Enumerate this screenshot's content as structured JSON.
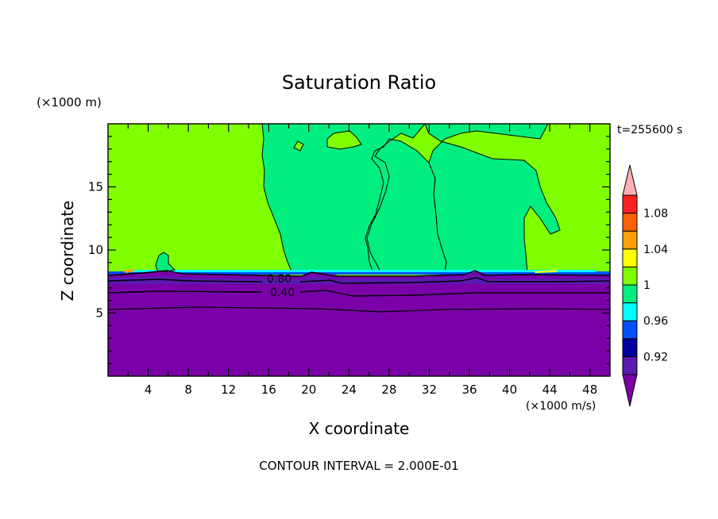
{
  "chart_data": {
    "type": "heatmap",
    "title": "Saturation Ratio",
    "xlabel": "X coordinate",
    "ylabel": "Z coordinate",
    "x_unit_label": "(×1000 m/s)",
    "y_unit_label": "(×1000 m)",
    "time_label": "t=255600 s",
    "footer": "CONTOUR INTERVAL = 2.000E-01",
    "xlim": [
      0,
      50
    ],
    "ylim": [
      0,
      20
    ],
    "x_ticks": [
      4,
      8,
      12,
      16,
      20,
      24,
      28,
      32,
      36,
      40,
      44,
      48
    ],
    "y_ticks": [
      5,
      10,
      15
    ],
    "colorbar": {
      "tick_labels": [
        "0.92",
        "0.96",
        "1",
        "1.04",
        "1.08"
      ],
      "levels": [
        0.9,
        0.92,
        0.94,
        0.96,
        0.98,
        1.0,
        1.02,
        1.04,
        1.06,
        1.08,
        1.1
      ],
      "colors": [
        "#5a1ab0",
        "#0000a0",
        "#0050ff",
        "#00ffff",
        "#00ee80",
        "#80ff00",
        "#ffff00",
        "#ffa000",
        "#ff6000",
        "#ff2020"
      ],
      "under_color": "#7a00a8",
      "over_color": "#ffb0b0"
    },
    "contour_labels": [
      {
        "text": "0.80",
        "x": 17.5,
        "z": 7.6
      },
      {
        "text": "0.40",
        "x": 17.5,
        "z": 6.4
      }
    ],
    "regions": {
      "upper_green_value": 1.01,
      "lower_region_value": "< 0.90",
      "boundary_height": 8.0,
      "saturated_region_x": [
        [
          15.3,
          26.5
        ],
        [
          32.5,
          43.5
        ]
      ]
    }
  }
}
